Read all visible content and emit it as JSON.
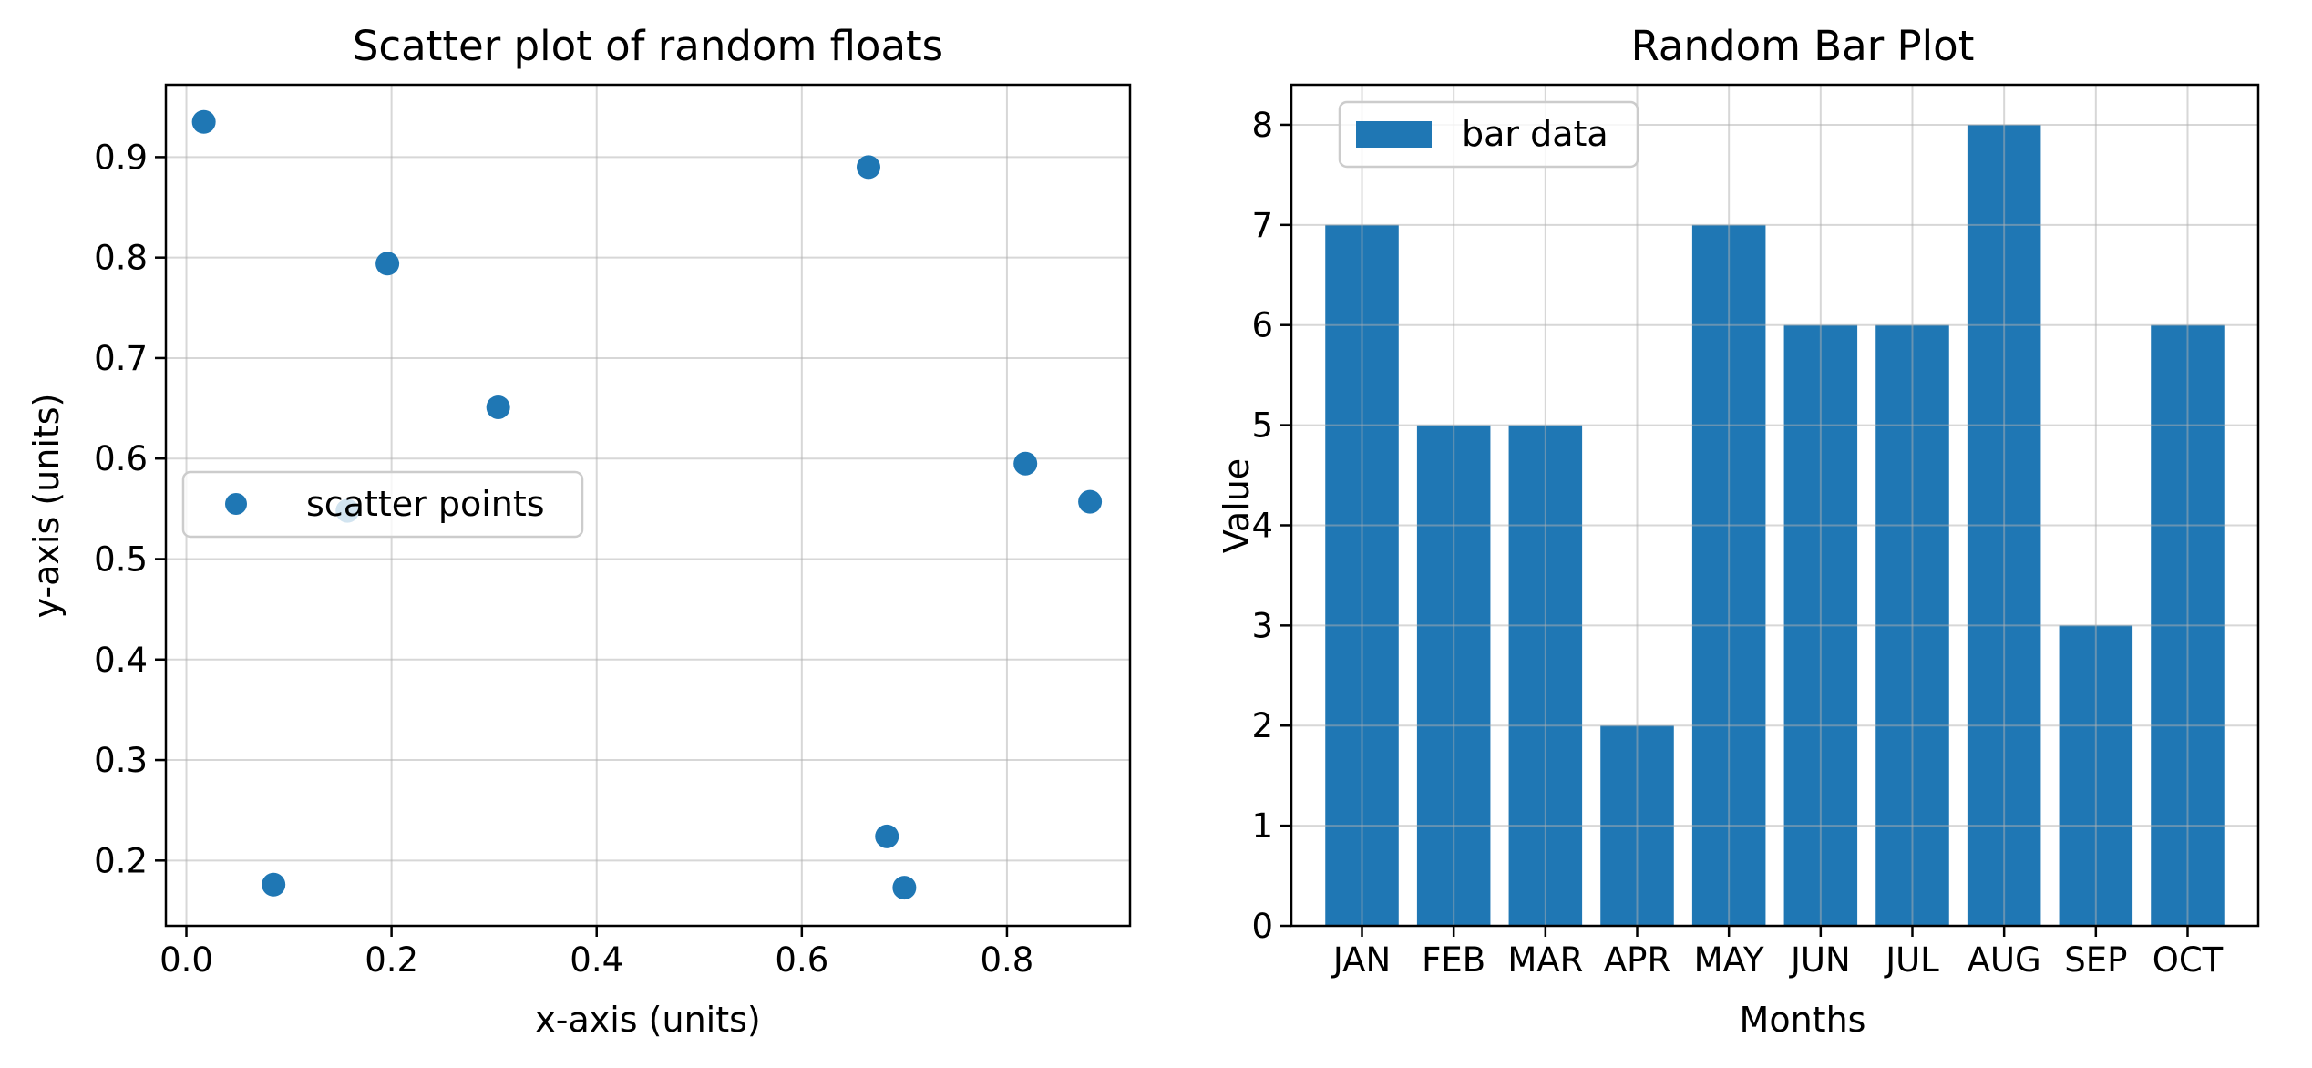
{
  "chart_data": [
    {
      "type": "scatter",
      "title": "Scatter plot of random floats",
      "xlabel": "x-axis (units)",
      "ylabel": "y-axis (units)",
      "xlim": [
        -0.02,
        0.92
      ],
      "ylim": [
        0.135,
        0.972
      ],
      "xticks": [
        0.0,
        0.2,
        0.4,
        0.6,
        0.8
      ],
      "xtick_labels": [
        "0.0",
        "0.2",
        "0.4",
        "0.6",
        "0.8"
      ],
      "yticks": [
        0.2,
        0.3,
        0.4,
        0.5,
        0.6,
        0.7,
        0.8,
        0.9
      ],
      "ytick_labels": [
        "0.2",
        "0.3",
        "0.4",
        "0.5",
        "0.6",
        "0.7",
        "0.8",
        "0.9"
      ],
      "grid": true,
      "legend": {
        "placement": "center-left",
        "entries": [
          "scatter points"
        ]
      },
      "series": [
        {
          "name": "scatter points",
          "color": "#1f77b4",
          "points": [
            {
              "x": 0.017,
              "y": 0.935
            },
            {
              "x": 0.085,
              "y": 0.176
            },
            {
              "x": 0.157,
              "y": 0.548
            },
            {
              "x": 0.196,
              "y": 0.794
            },
            {
              "x": 0.304,
              "y": 0.651
            },
            {
              "x": 0.665,
              "y": 0.89
            },
            {
              "x": 0.683,
              "y": 0.224
            },
            {
              "x": 0.7,
              "y": 0.173
            },
            {
              "x": 0.818,
              "y": 0.595
            },
            {
              "x": 0.881,
              "y": 0.557
            }
          ]
        }
      ]
    },
    {
      "type": "bar",
      "title": "Random Bar Plot",
      "xlabel": "Months",
      "ylabel": "Value",
      "categories": [
        "JAN",
        "FEB",
        "MAR",
        "APR",
        "MAY",
        "JUN",
        "JUL",
        "AUG",
        "SEP",
        "OCT"
      ],
      "ylim": [
        0,
        8.4
      ],
      "yticks": [
        0,
        1,
        2,
        3,
        4,
        5,
        6,
        7,
        8
      ],
      "ytick_labels": [
        "0",
        "1",
        "2",
        "3",
        "4",
        "5",
        "6",
        "7",
        "8"
      ],
      "grid": true,
      "legend": {
        "placement": "top-left",
        "entries": [
          "bar data"
        ]
      },
      "series": [
        {
          "name": "bar data",
          "color": "#1f77b4",
          "values": [
            7,
            5,
            5,
            2,
            7,
            6,
            6,
            8,
            3,
            6
          ]
        }
      ]
    }
  ]
}
